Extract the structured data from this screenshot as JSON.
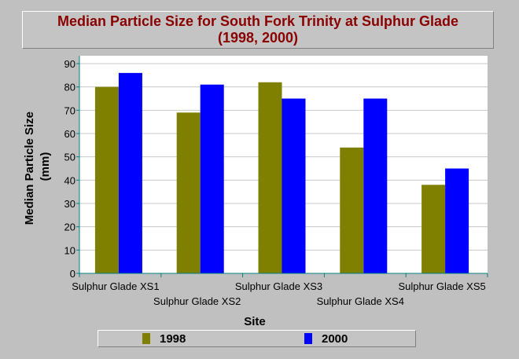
{
  "chart_data": {
    "type": "bar",
    "title": "Median Particle Size for South Fork Trinity at Sulphur Glade (1998, 2000)",
    "xlabel": "Site",
    "ylabel": "Median Particle Size (mm)",
    "ylabel_lines": [
      "Median Particle Size",
      "(mm)"
    ],
    "categories": [
      "Sulphur Glade XS1",
      "Sulphur Glade XS2",
      "Sulphur Glade XS3",
      "Sulphur Glade XS4",
      "Sulphur Glade XS5"
    ],
    "series": [
      {
        "name": "1998",
        "values": [
          80,
          69,
          82,
          54,
          38
        ],
        "color": "#808000"
      },
      {
        "name": "2000",
        "values": [
          86,
          81,
          75,
          75,
          45
        ],
        "color": "#0000ff"
      }
    ],
    "ylim": [
      0,
      90
    ],
    "yticks": [
      0,
      10,
      20,
      30,
      40,
      50,
      60,
      70,
      80,
      90
    ],
    "grid": true,
    "legend_position": "bottom"
  }
}
